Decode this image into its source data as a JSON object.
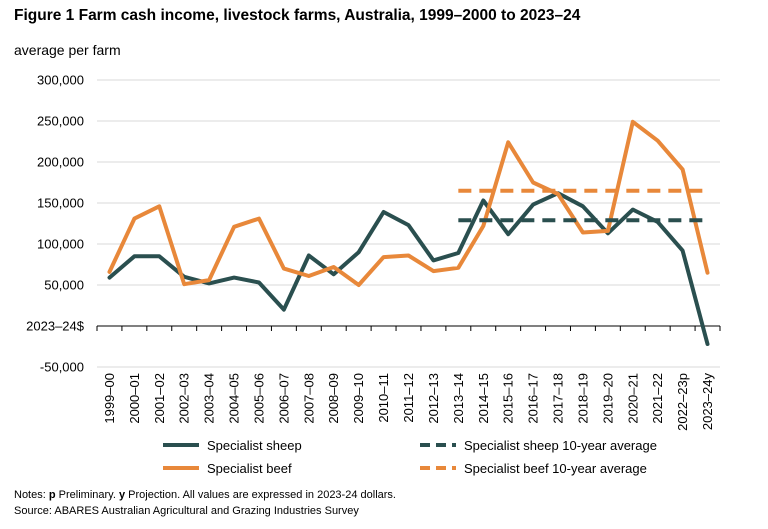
{
  "chart_data": {
    "type": "line",
    "title": "Figure 1 Farm cash income, livestock farms, Australia, 1999–2000 to 2023–24",
    "ylabel": "average per farm",
    "ylim": [
      -50000,
      300000
    ],
    "yticks": [
      "-50,000",
      "2023–24$",
      "50,000",
      "100,000",
      "150,000",
      "200,000",
      "250,000",
      "300,000"
    ],
    "ytick_values": [
      -50000,
      0,
      50000,
      100000,
      150000,
      200000,
      250000,
      300000
    ],
    "grid": "horizontal",
    "legend_position": "bottom",
    "categories": [
      "1999–00",
      "2000–01",
      "2001–02",
      "2002–03",
      "2003–04",
      "2004–05",
      "2005–06",
      "2006–07",
      "2007–08",
      "2008–09",
      "2009–10",
      "2010–11",
      "2011–12",
      "2012–13",
      "2013–14",
      "2014–15",
      "2015–16",
      "2016–17",
      "2017–18",
      "2018–19",
      "2019–20",
      "2020–21",
      "2021–22",
      "2022–23p",
      "2023–24y"
    ],
    "series": [
      {
        "name": "Specialist sheep",
        "color": "#2a4f4f",
        "style": "solid",
        "values": [
          59000,
          85000,
          85000,
          60000,
          52000,
          59000,
          53000,
          20000,
          86000,
          63000,
          90000,
          139000,
          123000,
          80000,
          89000,
          153000,
          112000,
          148000,
          162000,
          146000,
          113000,
          142000,
          127000,
          92000,
          -22000
        ]
      },
      {
        "name": "Specialist beef",
        "color": "#e8883a",
        "style": "solid",
        "values": [
          66000,
          131000,
          146000,
          51000,
          56000,
          121000,
          131000,
          70000,
          61000,
          72000,
          50000,
          84000,
          86000,
          67000,
          71000,
          122000,
          224000,
          175000,
          161000,
          114000,
          116000,
          249000,
          226000,
          191000,
          65000
        ]
      },
      {
        "name": "Specialist sheep 10-year average",
        "color": "#2a4f4f",
        "style": "dashed",
        "x_start": "2013–14",
        "x_end": "2023–24y",
        "value": 129000
      },
      {
        "name": "Specialist beef 10-year average",
        "color": "#e8883a",
        "style": "dashed",
        "x_start": "2013–14",
        "x_end": "2023–24y",
        "value": 165000
      }
    ]
  },
  "notes": {
    "line1_notes_prefix": "Notes: ",
    "line1_p": "p",
    "line1_p_text": " Preliminary. ",
    "line1_y": "y",
    "line1_y_text": " Projection.  All values are expressed in 2023-24 dollars.",
    "line2": "Source: ABARES Australian Agricultural and Grazing Industries Survey"
  }
}
